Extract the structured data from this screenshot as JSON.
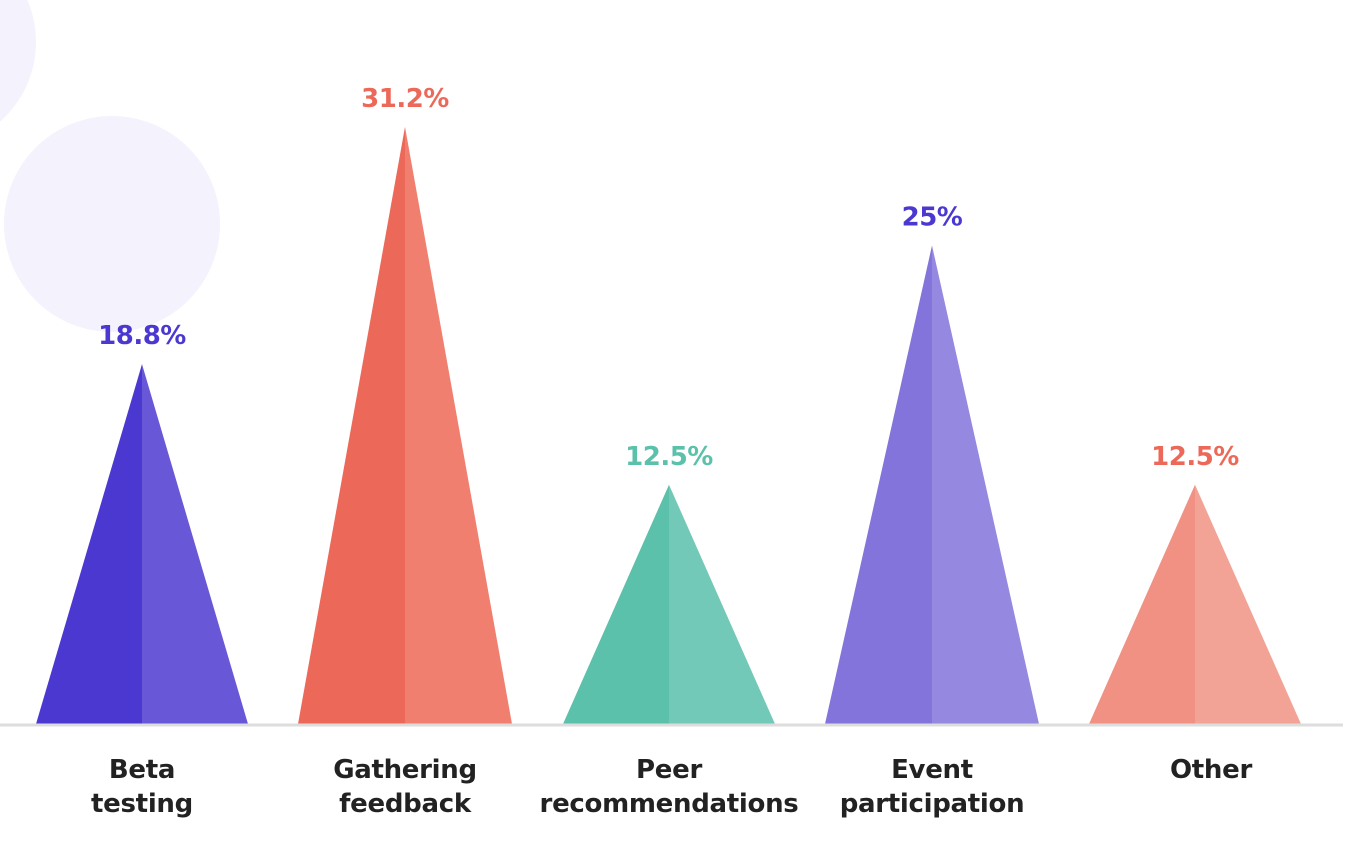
{
  "chart_data": {
    "type": "bar",
    "mark_shape": "triangle",
    "categories": [
      [
        "Beta",
        "testing"
      ],
      [
        "Gathering",
        "feedback"
      ],
      [
        "Peer",
        "recommendations"
      ],
      [
        "Event",
        "participation"
      ],
      [
        "Other"
      ]
    ],
    "values": [
      18.8,
      31.2,
      12.5,
      25,
      12.5
    ],
    "value_labels": [
      "18.8%",
      "31.2%",
      "12.5%",
      "25%",
      "12.5%"
    ],
    "ylim": [
      0,
      37.6
    ],
    "grid": false,
    "legend": "none",
    "colors": {
      "dark": [
        "#4b38d1",
        "#ec6959",
        "#5bc1ab",
        "#8374dc",
        "#f09183"
      ],
      "light": [
        "#6857d6",
        "#f07f6f",
        "#73c9b7",
        "#9588e1",
        "#f3a396"
      ],
      "label": [
        "#4b38d1",
        "#ec6959",
        "#5bc1ab",
        "#4b38d1",
        "#ec6959"
      ],
      "baseline": "#dddddd",
      "decoration": "#f4f2fd",
      "category_text": "#222222"
    }
  }
}
